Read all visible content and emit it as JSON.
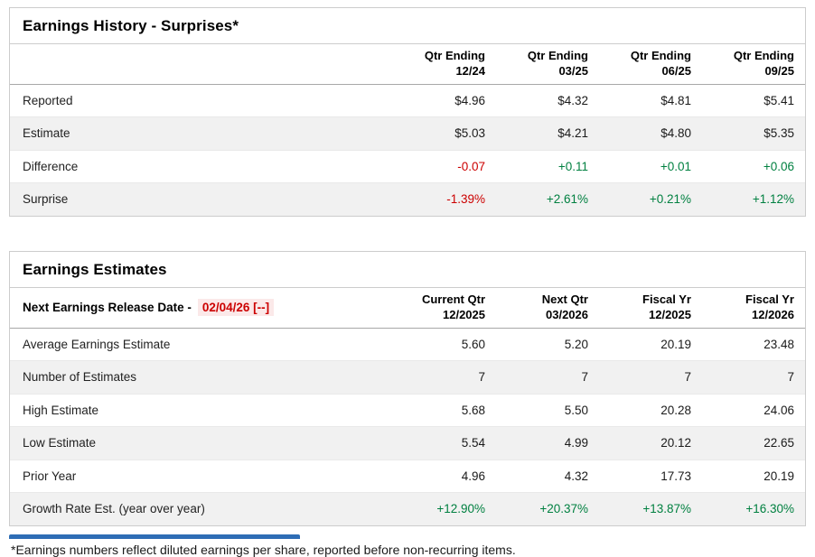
{
  "earnings_history": {
    "title": "Earnings History - Surprises*",
    "columns": [
      {
        "line1": "Qtr Ending",
        "line2": "12/24"
      },
      {
        "line1": "Qtr Ending",
        "line2": "03/25"
      },
      {
        "line1": "Qtr Ending",
        "line2": "06/25"
      },
      {
        "line1": "Qtr Ending",
        "line2": "09/25"
      }
    ],
    "rows": [
      {
        "label": "Reported",
        "values": [
          "$4.96",
          "$4.32",
          "$4.81",
          "$5.41"
        ]
      },
      {
        "label": "Estimate",
        "values": [
          "$5.03",
          "$4.21",
          "$4.80",
          "$5.35"
        ]
      },
      {
        "label": "Difference",
        "values": [
          "-0.07",
          "+0.11",
          "+0.01",
          "+0.06"
        ]
      },
      {
        "label": "Surprise",
        "values": [
          "-1.39%",
          "+2.61%",
          "+0.21%",
          "+1.12%"
        ]
      }
    ]
  },
  "earnings_estimates": {
    "title": "Earnings Estimates",
    "release_label": "Next Earnings Release Date -",
    "release_date": "02/04/26 [--]",
    "columns": [
      {
        "line1": "Current Qtr",
        "line2": "12/2025"
      },
      {
        "line1": "Next Qtr",
        "line2": "03/2026"
      },
      {
        "line1": "Fiscal Yr",
        "line2": "12/2025"
      },
      {
        "line1": "Fiscal Yr",
        "line2": "12/2026"
      }
    ],
    "rows": [
      {
        "label": "Average Earnings Estimate",
        "values": [
          "5.60",
          "5.20",
          "20.19",
          "23.48"
        ]
      },
      {
        "label": "Number of Estimates",
        "values": [
          "7",
          "7",
          "7",
          "7"
        ]
      },
      {
        "label": "High Estimate",
        "values": [
          "5.68",
          "5.50",
          "20.28",
          "24.06"
        ]
      },
      {
        "label": "Low Estimate",
        "values": [
          "5.54",
          "4.99",
          "20.12",
          "22.65"
        ]
      },
      {
        "label": "Prior Year",
        "values": [
          "4.96",
          "4.32",
          "17.73",
          "20.19"
        ]
      },
      {
        "label": "Growth Rate Est. (year over year)",
        "values": [
          "+12.90%",
          "+20.37%",
          "+13.87%",
          "+16.30%"
        ]
      }
    ]
  },
  "footnote": "*Earnings numbers reflect diluted earnings per share, reported before non-recurring items.",
  "colors": {
    "positive_green": "#008040",
    "negative_red": "#cc0000",
    "release_date_red": "#cc0000",
    "release_date_bg": "#fbe9e9",
    "stripe_gray": "#f1f1f1",
    "border_gray": "#cccccc",
    "partial_bar_blue": "#2e6db5"
  }
}
